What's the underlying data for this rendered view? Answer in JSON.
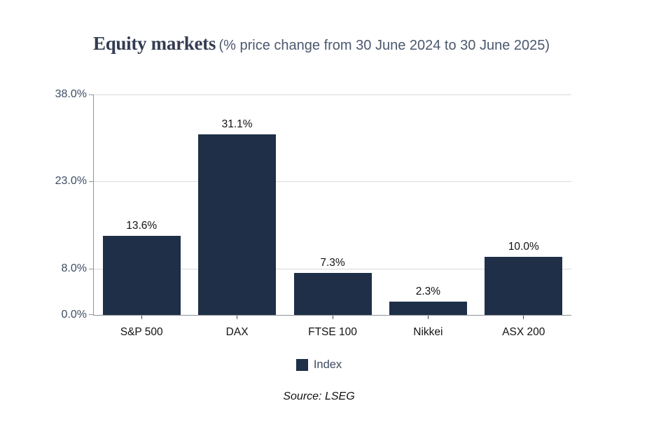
{
  "header": {
    "title": "Equity markets",
    "subtitle": "(% price change from 30 June 2024 to 30 June 2025)"
  },
  "chart_data": {
    "type": "bar",
    "title": "Equity markets",
    "subtitle": "(% price change from 30 June 2024 to 30 June 2025)",
    "categories": [
      "S&P 500",
      "DAX",
      "FTSE 100",
      "Nikkei",
      "ASX 200"
    ],
    "series": [
      {
        "name": "Index",
        "values": [
          13.6,
          31.1,
          7.3,
          2.3,
          10.0
        ],
        "value_labels": [
          "13.6%",
          "31.1%",
          "7.3%",
          "2.3%",
          "10.0%"
        ]
      }
    ],
    "ylim": [
      0,
      38
    ],
    "yticks": [
      0,
      8,
      23,
      38
    ],
    "ytick_labels": [
      "0.0%",
      "8.0%",
      "23.0%",
      "38.0%"
    ],
    "grid": "horizontal",
    "legend_position": "bottom-center",
    "bar_color": "#1e2f47"
  },
  "legend": {
    "label": "Index"
  },
  "source": {
    "text": "Source: LSEG"
  },
  "colors": {
    "bar": "#1e2f47",
    "title": "#333d52",
    "subtitle": "#4b586e",
    "y_axis_label": "#3d4c63",
    "x_axis_label": "#121212",
    "data_label": "#121212",
    "gridline": "#dadadd",
    "axis_line": "#8e949c",
    "legend_text": "#3d4a5f",
    "background": "#ffffff"
  }
}
